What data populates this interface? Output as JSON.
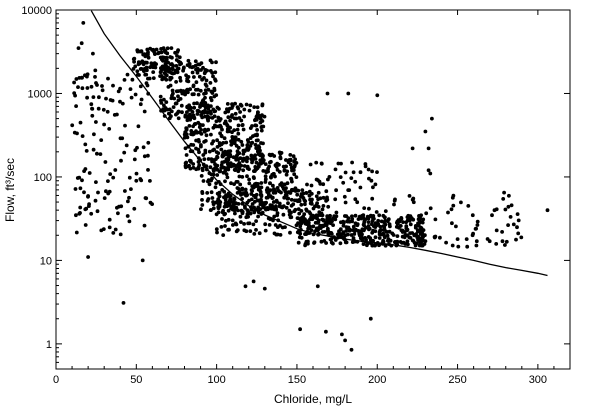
{
  "chart_data": {
    "type": "scatter",
    "xlabel": "Chloride, mg/L",
    "ylabel": "Flow, ft³/sec",
    "xlim": [
      0,
      320
    ],
    "ylim": [
      0.5,
      10000
    ],
    "yscale": "log",
    "grid": false,
    "x_ticks": [
      0,
      50,
      100,
      150,
      200,
      250,
      300
    ],
    "x_tick_labels": [
      "0",
      "50",
      "100",
      "150",
      "200",
      "250",
      "300"
    ],
    "y_ticks": [
      1,
      10,
      100,
      1000,
      10000
    ],
    "y_tick_labels": [
      "1",
      "10",
      "100",
      "1000",
      "10000"
    ],
    "point_color": "#000000",
    "clusters": [
      {
        "xmin": 48,
        "xmax": 78,
        "ymin": 1500,
        "ymax": 3500,
        "n": 120
      },
      {
        "xmin": 65,
        "xmax": 100,
        "ymin": 500,
        "ymax": 2500,
        "n": 180
      },
      {
        "xmin": 80,
        "xmax": 130,
        "ymin": 120,
        "ymax": 800,
        "n": 330
      },
      {
        "xmin": 90,
        "xmax": 150,
        "ymin": 40,
        "ymax": 200,
        "n": 280
      },
      {
        "xmin": 100,
        "xmax": 170,
        "ymin": 20,
        "ymax": 70,
        "n": 220
      },
      {
        "xmin": 150,
        "xmax": 230,
        "ymin": 15,
        "ymax": 35,
        "n": 360
      },
      {
        "xmin": 10,
        "xmax": 60,
        "ymin": 20,
        "ymax": 2000,
        "n": 150
      },
      {
        "xmin": 120,
        "xmax": 200,
        "ymin": 35,
        "ymax": 150,
        "n": 100
      },
      {
        "xmin": 200,
        "xmax": 290,
        "ymin": 14,
        "ymax": 60,
        "n": 70
      }
    ],
    "outliers": [
      {
        "x": 17,
        "y": 7000
      },
      {
        "x": 16,
        "y": 4000
      },
      {
        "x": 14,
        "y": 3500
      },
      {
        "x": 23,
        "y": 3000
      },
      {
        "x": 20,
        "y": 11
      },
      {
        "x": 42,
        "y": 3.1
      },
      {
        "x": 54,
        "y": 10
      },
      {
        "x": 118,
        "y": 4.9
      },
      {
        "x": 123,
        "y": 5.6
      },
      {
        "x": 130,
        "y": 4.6
      },
      {
        "x": 152,
        "y": 1.5
      },
      {
        "x": 163,
        "y": 4.9
      },
      {
        "x": 168,
        "y": 1.4
      },
      {
        "x": 178,
        "y": 1.3
      },
      {
        "x": 180,
        "y": 1.1
      },
      {
        "x": 184,
        "y": 0.85
      },
      {
        "x": 196,
        "y": 2.0
      },
      {
        "x": 169,
        "y": 1000
      },
      {
        "x": 182,
        "y": 1000
      },
      {
        "x": 200,
        "y": 950
      },
      {
        "x": 234,
        "y": 500
      },
      {
        "x": 230,
        "y": 350
      },
      {
        "x": 232,
        "y": 220
      },
      {
        "x": 222,
        "y": 220
      },
      {
        "x": 232,
        "y": 120
      },
      {
        "x": 233,
        "y": 110
      },
      {
        "x": 279,
        "y": 65
      },
      {
        "x": 306,
        "y": 40
      },
      {
        "x": 285,
        "y": 27
      },
      {
        "x": 287,
        "y": 25
      },
      {
        "x": 278,
        "y": 17
      },
      {
        "x": 270,
        "y": 17
      },
      {
        "x": 262,
        "y": 17
      },
      {
        "x": 250,
        "y": 18
      }
    ],
    "fit_curve": {
      "x": [
        22,
        30,
        40,
        50,
        60,
        70,
        80,
        90,
        100,
        110,
        120,
        130,
        140,
        150,
        160,
        170,
        180,
        190,
        200,
        210,
        220,
        230,
        240,
        250,
        260,
        270,
        280,
        290,
        300,
        306
      ],
      "y": [
        9800,
        5200,
        2800,
        1600,
        880,
        480,
        265,
        155,
        92,
        62,
        45,
        35,
        29,
        24,
        21,
        19.5,
        18,
        17,
        16.2,
        15.4,
        14.3,
        13.2,
        12.1,
        11,
        10,
        9,
        8.2,
        7.6,
        7.0,
        6.6
      ]
    }
  }
}
